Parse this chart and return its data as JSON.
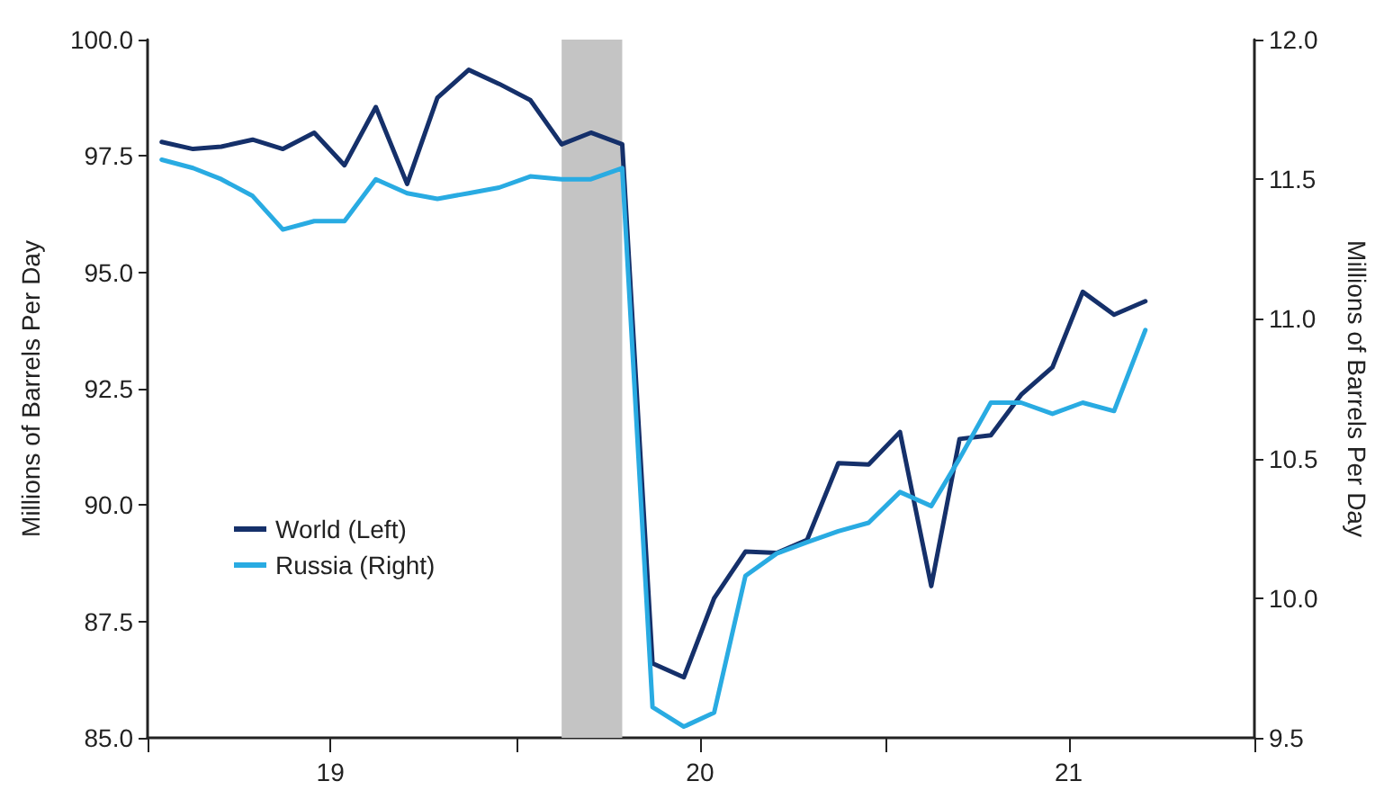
{
  "chart_data": {
    "type": "line",
    "ylabel": "Millions of Barrels Per Day",
    "y2label": "Millions of Barrels Per Day",
    "x": [
      "2019-01-15",
      "2019-02-15",
      "2019-03-15",
      "2019-04-15",
      "2019-05-15",
      "2019-06-15",
      "2019-07-15",
      "2019-08-15",
      "2019-09-15",
      "2019-10-15",
      "2019-11-15",
      "2019-12-15",
      "2020-01-15",
      "2020-02-15",
      "2020-03-15",
      "2020-04-15",
      "2020-05-15",
      "2020-06-15",
      "2020-07-15",
      "2020-08-15",
      "2020-09-15",
      "2020-10-15",
      "2020-11-15",
      "2020-12-15",
      "2021-01-15",
      "2021-02-15",
      "2021-03-15",
      "2021-04-15",
      "2021-05-15",
      "2021-06-15",
      "2021-07-15",
      "2021-08-15",
      "2021-09-15"
    ],
    "series": [
      {
        "name": "World (Left)",
        "color": "#15306a",
        "values": [
          97.8,
          97.65,
          97.7,
          97.85,
          97.65,
          98.0,
          97.3,
          98.55,
          96.9,
          98.75,
          99.35,
          99.05,
          98.7,
          97.75,
          98.0,
          97.75,
          86.6,
          86.3,
          88.0,
          89.0,
          88.97,
          89.25,
          90.9,
          90.87,
          91.57,
          88.26,
          91.42,
          91.5,
          92.37,
          92.96,
          94.58,
          94.09,
          94.38
        ]
      },
      {
        "name": "Russia (Right)",
        "color": "#29abe2",
        "axis": "y2",
        "values": [
          11.57,
          11.54,
          11.5,
          11.44,
          11.32,
          11.35,
          11.35,
          11.5,
          11.45,
          11.43,
          11.45,
          11.47,
          11.51,
          11.5,
          11.5,
          11.54,
          9.61,
          9.54,
          9.59,
          10.08,
          10.16,
          10.2,
          10.24,
          10.27,
          10.38,
          10.33,
          10.5,
          10.7,
          10.7,
          10.66,
          10.7,
          10.67,
          10.96
        ]
      }
    ],
    "xlim": [
      "2019-01-01",
      "2022-01-01"
    ],
    "xticks": [
      {
        "value": "2019-01-01",
        "label": null
      },
      {
        "value": "2019-07-01",
        "label": "19"
      },
      {
        "value": "2020-01-01",
        "label": null
      },
      {
        "value": "2020-07-01",
        "label": "20"
      },
      {
        "value": "2021-01-01",
        "label": null
      },
      {
        "value": "2021-07-01",
        "label": "21"
      },
      {
        "value": "2022-01-01",
        "label": null
      }
    ],
    "ylim": [
      85,
      100
    ],
    "yticks": [
      {
        "value": 85,
        "label": "85.0"
      },
      {
        "value": 87.5,
        "label": "87.5"
      },
      {
        "value": 90,
        "label": "90.0"
      },
      {
        "value": 92.5,
        "label": "92.5"
      },
      {
        "value": 95,
        "label": "95.0"
      },
      {
        "value": 97.5,
        "label": "97.5"
      },
      {
        "value": 100,
        "label": "100.0"
      }
    ],
    "y2lim": [
      9.5,
      12
    ],
    "y2ticks": [
      9.5,
      {
        "value": 10,
        "label": "10.0"
      },
      10.5,
      {
        "value": 11,
        "label": "11.0"
      },
      11.5,
      {
        "value": 12,
        "label": "12.0"
      }
    ],
    "bands": [
      {
        "axis": "x",
        "from": "2020-02-15",
        "to": "2020-04-15",
        "color": "#c4c4c4"
      }
    ],
    "grid": false,
    "legend": "left",
    "marker": "none",
    "line_style": "solid"
  }
}
